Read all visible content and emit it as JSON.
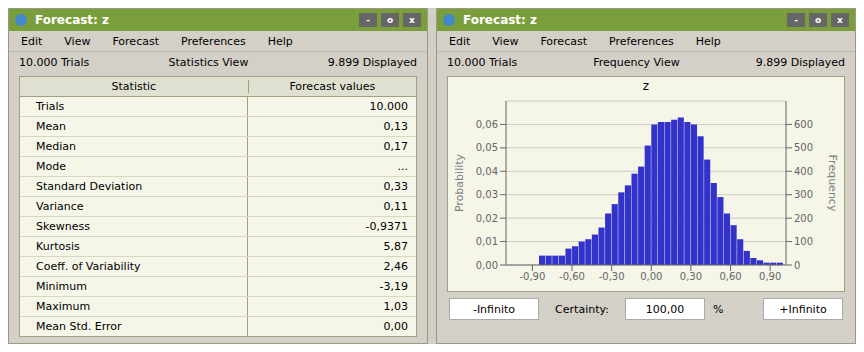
{
  "chart_data": {
    "type": "bar",
    "title": "z",
    "x": [
      -0.825,
      -0.775,
      -0.725,
      -0.675,
      -0.625,
      -0.575,
      -0.525,
      -0.475,
      -0.425,
      -0.375,
      -0.325,
      -0.275,
      -0.225,
      -0.175,
      -0.125,
      -0.075,
      -0.025,
      0.025,
      0.075,
      0.125,
      0.175,
      0.225,
      0.275,
      0.325,
      0.375,
      0.425,
      0.475,
      0.525,
      0.575,
      0.625,
      0.675,
      0.725,
      0.775,
      0.825,
      0.875,
      0.925,
      0.975
    ],
    "values": [
      0.004,
      0.004,
      0.004,
      0.004,
      0.007,
      0.008,
      0.01,
      0.011,
      0.013,
      0.016,
      0.022,
      0.026,
      0.031,
      0.034,
      0.039,
      0.042,
      0.051,
      0.06,
      0.061,
      0.061,
      0.062,
      0.063,
      0.061,
      0.06,
      0.055,
      0.045,
      0.035,
      0.029,
      0.022,
      0.017,
      0.011,
      0.006,
      0.003,
      0.002,
      0.001,
      0.001,
      0.001
    ],
    "color": "#3333cc",
    "xlim": [
      -1.1,
      1.02
    ],
    "xticks": [
      {
        "value": -0.9,
        "label": "-0,90"
      },
      {
        "value": -0.6,
        "label": "-0,60"
      },
      {
        "value": -0.3,
        "label": "-0,30"
      },
      {
        "value": 0.0,
        "label": "0,00"
      },
      {
        "value": 0.3,
        "label": "0,30"
      },
      {
        "value": 0.6,
        "label": "0,60"
      },
      {
        "value": 0.9,
        "label": "0,90"
      }
    ],
    "ylabel": "Probability",
    "ylim": [
      0,
      0.07
    ],
    "yticks": [
      {
        "value": 0.0,
        "label": "0,00"
      },
      {
        "value": 0.01,
        "label": "0,01"
      },
      {
        "value": 0.02,
        "label": "0,02"
      },
      {
        "value": 0.03,
        "label": "0,03"
      },
      {
        "value": 0.04,
        "label": "0,04"
      },
      {
        "value": 0.05,
        "label": "0,05"
      },
      {
        "value": 0.06,
        "label": "0,06"
      }
    ],
    "y2label": "Frequency",
    "y2lim": [
      0,
      700
    ],
    "y2ticks": [
      0,
      100,
      200,
      300,
      400,
      500,
      600
    ],
    "grid": true,
    "annotations": [
      [
        "Forecast: z"
      ],
      [
        "-",
        "o",
        "x"
      ],
      [
        "Edit",
        "View",
        "Forecast",
        "Preferences",
        "Help"
      ],
      [
        "10.000 Trials",
        "Statistics View",
        "9.899 Displayed"
      ],
      [
        "10.000 Trials",
        "Frequency View",
        "9.899 Displayed"
      ],
      [
        "Statistic",
        "Forecast values"
      ],
      [
        "-Infinito",
        "Certainty:",
        "100,00",
        "%",
        "+Infinito"
      ],
      [
        "Trials",
        "10.000"
      ],
      [
        "Mean",
        "0,13"
      ],
      [
        "Median",
        "0,17"
      ],
      [
        "Mode",
        "..."
      ],
      [
        "Standard Deviation",
        "0,33"
      ],
      [
        "Variance",
        "0,11"
      ],
      [
        "Skewness",
        "-0,9371"
      ],
      [
        "Kurtosis",
        "5,87"
      ],
      [
        "Coeff. of Variability",
        "2,46"
      ],
      [
        "Minimum",
        "-3,19"
      ],
      [
        "Maximum",
        "1,03"
      ],
      [
        "Mean Std. Error",
        "0,00"
      ]
    ]
  }
}
